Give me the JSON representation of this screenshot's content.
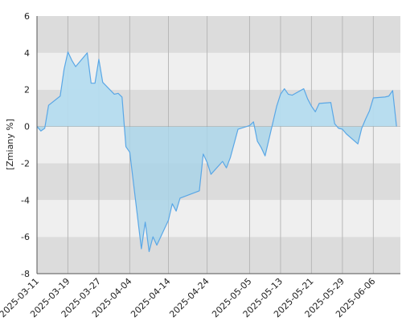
{
  "chart_data": {
    "type": "area",
    "title": "",
    "xlabel": "",
    "ylabel": "[Zmiany %]",
    "ylim": [
      -8,
      6
    ],
    "yticks": [
      -8,
      -6,
      -4,
      -2,
      0,
      2,
      4,
      6
    ],
    "x_tick_labels": [
      "2025-03-11",
      "2025-03-19",
      "2025-03-27",
      "2025-04-04",
      "2025-04-14",
      "2025-04-24",
      "2025-05-05",
      "2025-05-13",
      "2025-05-21",
      "2025-05-29",
      "2025-06-06"
    ],
    "xlim": [
      "2025-03-11",
      "2025-06-13"
    ],
    "grid": true,
    "legend": "none",
    "colors": {
      "line": "#5aa7e6",
      "fill_positive": "#b5dcef",
      "fill_negative": "#a9d3e8",
      "band_light": "#efefef",
      "band_dark": "#dcdcdc",
      "grid_vertical": "#b8b8b8",
      "axis": "#555555",
      "zero_line": "#888888"
    },
    "series": [
      {
        "points": [
          [
            "2025-03-11",
            0.0
          ],
          [
            "2025-03-12",
            -0.25
          ],
          [
            "2025-03-13",
            -0.1
          ],
          [
            "2025-03-14",
            1.15
          ],
          [
            "2025-03-17",
            1.65
          ],
          [
            "2025-03-18",
            3.1
          ],
          [
            "2025-03-19",
            4.05
          ],
          [
            "2025-03-20",
            3.6
          ],
          [
            "2025-03-21",
            3.25
          ],
          [
            "2025-03-24",
            4.0
          ],
          [
            "2025-03-25",
            2.35
          ],
          [
            "2025-03-26",
            2.35
          ],
          [
            "2025-03-27",
            3.65
          ],
          [
            "2025-03-28",
            2.4
          ],
          [
            "2025-03-31",
            1.75
          ],
          [
            "2025-04-01",
            1.8
          ],
          [
            "2025-04-02",
            1.6
          ],
          [
            "2025-04-03",
            -1.1
          ],
          [
            "2025-04-04",
            -1.4
          ],
          [
            "2025-04-07",
            -6.65
          ],
          [
            "2025-04-08",
            -5.2
          ],
          [
            "2025-04-09",
            -6.8
          ],
          [
            "2025-04-10",
            -6.0
          ],
          [
            "2025-04-11",
            -6.45
          ],
          [
            "2025-04-14",
            -5.1
          ],
          [
            "2025-04-15",
            -4.2
          ],
          [
            "2025-04-16",
            -4.6
          ],
          [
            "2025-04-17",
            -3.9
          ],
          [
            "2025-04-22",
            -3.5
          ],
          [
            "2025-04-23",
            -1.5
          ],
          [
            "2025-04-24",
            -1.95
          ],
          [
            "2025-04-25",
            -2.6
          ],
          [
            "2025-04-28",
            -1.9
          ],
          [
            "2025-04-29",
            -2.25
          ],
          [
            "2025-04-30",
            -1.7
          ],
          [
            "2025-05-02",
            -0.15
          ],
          [
            "2025-05-05",
            0.05
          ],
          [
            "2025-05-06",
            0.25
          ],
          [
            "2025-05-07",
            -0.8
          ],
          [
            "2025-05-08",
            -1.15
          ],
          [
            "2025-05-09",
            -1.6
          ],
          [
            "2025-05-12",
            1.1
          ],
          [
            "2025-05-13",
            1.75
          ],
          [
            "2025-05-14",
            2.05
          ],
          [
            "2025-05-15",
            1.75
          ],
          [
            "2025-05-16",
            1.7
          ],
          [
            "2025-05-19",
            2.05
          ],
          [
            "2025-05-20",
            1.5
          ],
          [
            "2025-05-21",
            1.1
          ],
          [
            "2025-05-22",
            0.8
          ],
          [
            "2025-05-23",
            1.25
          ],
          [
            "2025-05-26",
            1.3
          ],
          [
            "2025-05-27",
            0.15
          ],
          [
            "2025-05-28",
            -0.1
          ],
          [
            "2025-05-29",
            -0.15
          ],
          [
            "2025-05-30",
            -0.4
          ],
          [
            "2025-06-02",
            -0.95
          ],
          [
            "2025-06-03",
            -0.1
          ],
          [
            "2025-06-04",
            0.4
          ],
          [
            "2025-06-05",
            0.85
          ],
          [
            "2025-06-06",
            1.55
          ],
          [
            "2025-06-09",
            1.6
          ],
          [
            "2025-06-10",
            1.65
          ],
          [
            "2025-06-11",
            1.95
          ],
          [
            "2025-06-12",
            0.0
          ]
        ]
      }
    ]
  }
}
